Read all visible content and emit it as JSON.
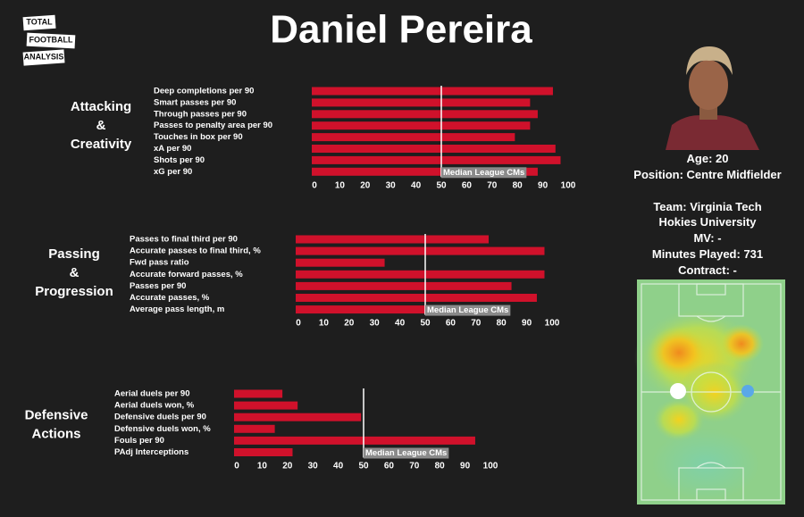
{
  "title": "Daniel Pereira",
  "logo": [
    "TOTAL",
    "FOOTBALL",
    "ANALYSIS"
  ],
  "profile": {
    "age": "Age: 20",
    "position": "Position: Centre Midfielder",
    "team": "Team: Virginia Tech Hokies University",
    "mv": "MV: -",
    "minutes": "Minutes Played: 731",
    "contract": "Contract: -"
  },
  "chart_data": [
    {
      "type": "barh",
      "section": [
        "Attacking",
        "&",
        "Creativity"
      ],
      "categories": [
        "Deep completions per 90",
        "Smart passes per 90",
        "Through passes per 90",
        "Passes to penalty area per 90",
        "Touches in box per 90",
        "xA per 90",
        "Shots per 90",
        "xG per 90"
      ],
      "values": [
        94,
        85,
        88,
        85,
        79,
        95,
        97,
        88
      ],
      "color": "#d0112b",
      "xlim": [
        0,
        100
      ],
      "xticks": [
        0,
        10,
        20,
        30,
        40,
        50,
        60,
        70,
        80,
        90,
        100
      ],
      "median": {
        "value": 50,
        "label": "Median League CMs"
      }
    },
    {
      "type": "barh",
      "section": [
        "Passing",
        "&",
        "Progression"
      ],
      "categories": [
        "Passes to final third per 90",
        "Accurate passes to final third, %",
        "Fwd pass ratio",
        "Accurate forward passes, %",
        "Passes per 90",
        "Accurate passes, %",
        "Average pass length, m"
      ],
      "values": [
        75,
        97,
        34,
        97,
        84,
        94,
        50
      ],
      "color": "#d0112b",
      "xlim": [
        0,
        100
      ],
      "xticks": [
        0,
        10,
        20,
        30,
        40,
        50,
        60,
        70,
        80,
        90,
        100
      ],
      "median": {
        "value": 50,
        "label": "Median League CMs"
      }
    },
    {
      "type": "barh",
      "section": [
        "Defensive",
        "Actions"
      ],
      "categories": [
        "Aerial duels per 90",
        "Aerial duels won, %",
        "Defensive duels per 90",
        "Defensive duels won, %",
        "Fouls per 90",
        "PAdj Interceptions"
      ],
      "values": [
        18,
        24,
        49,
        15,
        94,
        22
      ],
      "color": "#d0112b",
      "xlim": [
        0,
        100
      ],
      "xticks": [
        0,
        10,
        20,
        30,
        40,
        50,
        60,
        70,
        80,
        90,
        100
      ],
      "median": {
        "value": 50,
        "label": "Median League CMs"
      }
    }
  ]
}
